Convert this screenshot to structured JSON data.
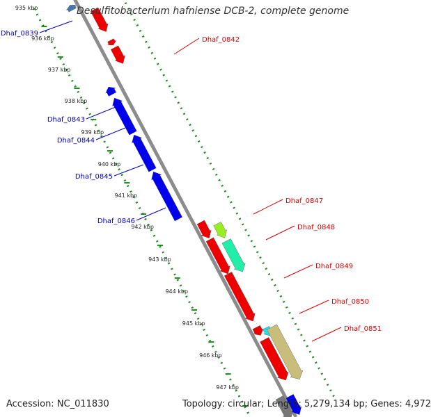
{
  "title": "Desulfitobacterium hafniense DCB-2, complete genome",
  "footer": {
    "accession": "Accession: NC_011830",
    "topology": "Topology: circular; Length: 5,279,134 bp; Genes: 4,972"
  },
  "colors": {
    "backbone": "#8c8c8c",
    "tick_dots": "#1a8a1a",
    "forward_label": "#dd0000",
    "reverse_label": "#0000bb",
    "red_gene": "#ee0000",
    "blue_gene": "#0000ee",
    "lime_gene": "#99ee22",
    "teal_gene": "#22eeaa",
    "cyan_gene": "#22ddee",
    "khaki_gene": "#c8bd7a",
    "gray_gene": "#777777",
    "steel_gene": "#4477aa"
  },
  "ticks": [
    "935 kbp",
    "936 kbp",
    "937 kbp",
    "938 kbp",
    "939 kbp",
    "940 kbp",
    "941 kbp",
    "942 kbp",
    "943 kbp",
    "944 kbp",
    "945 kbp",
    "946 kbp",
    "947 kbp"
  ],
  "labels": {
    "forward": [
      "Dhaf_0842",
      "Dhaf_0847",
      "Dhaf_0848",
      "Dhaf_0849",
      "Dhaf_0850",
      "Dhaf_0851"
    ],
    "reverse": [
      "Dhaf_0839",
      "Dhaf_0843",
      "Dhaf_0844",
      "Dhaf_0845",
      "Dhaf_0846"
    ]
  }
}
